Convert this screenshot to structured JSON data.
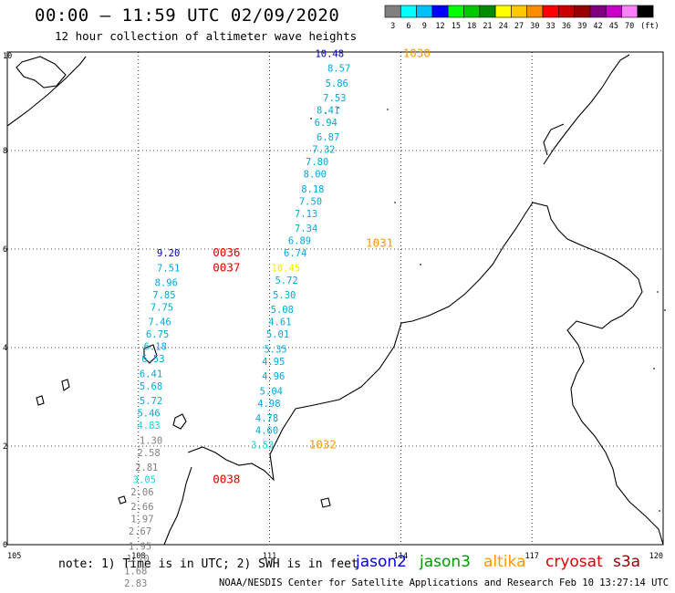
{
  "header": {
    "title": "00:00 – 11:59 UTC 02/09/2020",
    "subtitle": "12 hour collection of altimeter wave heights"
  },
  "legend": {
    "unit": "(ft)",
    "bins": [
      {
        "label": "3",
        "color": "#808080"
      },
      {
        "label": "6",
        "color": "#00ffff"
      },
      {
        "label": "9",
        "color": "#00bfff"
      },
      {
        "label": "12",
        "color": "#0000ff"
      },
      {
        "label": "15",
        "color": "#00ff00"
      },
      {
        "label": "18",
        "color": "#00c800"
      },
      {
        "label": "21",
        "color": "#008c00"
      },
      {
        "label": "24",
        "color": "#ffff00"
      },
      {
        "label": "27",
        "color": "#ffc800"
      },
      {
        "label": "30",
        "color": "#ff8c00"
      },
      {
        "label": "33",
        "color": "#ff0000"
      },
      {
        "label": "36",
        "color": "#c80000"
      },
      {
        "label": "39",
        "color": "#960000"
      },
      {
        "label": "42",
        "color": "#800080"
      },
      {
        "label": "45",
        "color": "#c800c8"
      },
      {
        "label": "70",
        "color": "#ff80ff"
      },
      {
        "label": "",
        "color": "#000000"
      }
    ]
  },
  "map": {
    "lon_range": [
      105,
      120
    ],
    "lat_range": [
      0,
      10
    ],
    "x_ticks": [
      "105",
      "108",
      "111",
      "114",
      "117",
      "120"
    ],
    "y_ticks": [
      "0",
      "2",
      "4",
      "6",
      "8",
      "10"
    ],
    "grid": true
  },
  "tracks": [
    {
      "points": [
        {
          "v": "10.48",
          "lon": 112.7,
          "lat": 9.9,
          "color": "#0000aa"
        },
        {
          "v": "8.57",
          "lon": 112.85,
          "lat": 9.6,
          "color": "#00aadd"
        },
        {
          "v": "5.86",
          "lon": 112.8,
          "lat": 9.3,
          "color": "#00aadd"
        },
        {
          "v": "7.53",
          "lon": 112.75,
          "lat": 9.0,
          "color": "#00aadd"
        },
        {
          "v": "8.41",
          "lon": 112.6,
          "lat": 8.75,
          "color": "#00aadd"
        },
        {
          "v": "6.94",
          "lon": 112.55,
          "lat": 8.5,
          "color": "#00aadd"
        },
        {
          "v": "6.87",
          "lon": 112.6,
          "lat": 8.2,
          "color": "#00aadd"
        },
        {
          "v": "7.32",
          "lon": 112.5,
          "lat": 7.95,
          "color": "#00aadd"
        },
        {
          "v": "7.80",
          "lon": 112.35,
          "lat": 7.7,
          "color": "#00aadd"
        },
        {
          "v": "8.00",
          "lon": 112.3,
          "lat": 7.45,
          "color": "#00aadd"
        },
        {
          "v": "8.18",
          "lon": 112.25,
          "lat": 7.15,
          "color": "#00aadd"
        },
        {
          "v": "7.50",
          "lon": 112.2,
          "lat": 6.9,
          "color": "#00aadd"
        },
        {
          "v": "7.13",
          "lon": 112.1,
          "lat": 6.65,
          "color": "#00aadd"
        },
        {
          "v": "7.34",
          "lon": 112.1,
          "lat": 6.35,
          "color": "#00aadd"
        },
        {
          "v": "6.89",
          "lon": 111.95,
          "lat": 6.1,
          "color": "#00aadd"
        },
        {
          "v": "6.74",
          "lon": 111.85,
          "lat": 5.85,
          "color": "#00aadd"
        },
        {
          "v": "10.45",
          "lon": 111.7,
          "lat": 5.55,
          "color": "#eeee00"
        },
        {
          "v": "5.72",
          "lon": 111.65,
          "lat": 5.3,
          "color": "#00aadd"
        },
        {
          "v": "5.30",
          "lon": 111.6,
          "lat": 5.0,
          "color": "#00aadd"
        },
        {
          "v": "5.08",
          "lon": 111.55,
          "lat": 4.7,
          "color": "#00aadd"
        },
        {
          "v": "4.61",
          "lon": 111.5,
          "lat": 4.45,
          "color": "#00aadd"
        },
        {
          "v": "5.01",
          "lon": 111.45,
          "lat": 4.2,
          "color": "#00aadd"
        },
        {
          "v": "5.35",
          "lon": 111.4,
          "lat": 3.9,
          "color": "#00aadd"
        },
        {
          "v": "4.95",
          "lon": 111.35,
          "lat": 3.65,
          "color": "#00aadd"
        },
        {
          "v": "4.96",
          "lon": 111.35,
          "lat": 3.35,
          "color": "#00aadd"
        },
        {
          "v": "5.04",
          "lon": 111.3,
          "lat": 3.05,
          "color": "#00aadd"
        },
        {
          "v": "4.98",
          "lon": 111.25,
          "lat": 2.8,
          "color": "#00aadd"
        },
        {
          "v": "4.78",
          "lon": 111.2,
          "lat": 2.5,
          "color": "#00aadd"
        },
        {
          "v": "4.60",
          "lon": 111.2,
          "lat": 2.25,
          "color": "#00aadd"
        },
        {
          "v": "3.53",
          "lon": 111.1,
          "lat": 1.95,
          "color": "#00dddd"
        }
      ]
    },
    {
      "points": [
        {
          "v": "9.20",
          "lon": 108.95,
          "lat": 5.85,
          "color": "#0000aa"
        },
        {
          "v": "7.51",
          "lon": 108.95,
          "lat": 5.55,
          "color": "#00aadd"
        },
        {
          "v": "8.96",
          "lon": 108.9,
          "lat": 5.25,
          "color": "#00aadd"
        },
        {
          "v": "7.85",
          "lon": 108.85,
          "lat": 5.0,
          "color": "#00aadd"
        },
        {
          "v": "7.75",
          "lon": 108.8,
          "lat": 4.75,
          "color": "#00aadd"
        },
        {
          "v": "7.46",
          "lon": 108.75,
          "lat": 4.45,
          "color": "#00aadd"
        },
        {
          "v": "6.75",
          "lon": 108.7,
          "lat": 4.2,
          "color": "#00aadd"
        },
        {
          "v": "6.18",
          "lon": 108.65,
          "lat": 3.95,
          "color": "#00aadd"
        },
        {
          "v": "6.53",
          "lon": 108.6,
          "lat": 3.7,
          "color": "#00aadd"
        },
        {
          "v": "6.41",
          "lon": 108.55,
          "lat": 3.4,
          "color": "#00aadd"
        },
        {
          "v": "5.68",
          "lon": 108.55,
          "lat": 3.15,
          "color": "#00aadd"
        },
        {
          "v": "5.72",
          "lon": 108.55,
          "lat": 2.85,
          "color": "#00aadd"
        },
        {
          "v": "5.46",
          "lon": 108.5,
          "lat": 2.6,
          "color": "#00aadd"
        },
        {
          "v": "4.83",
          "lon": 108.5,
          "lat": 2.35,
          "color": "#00dddd"
        },
        {
          "v": "1.30",
          "lon": 108.55,
          "lat": 2.05,
          "color": "#808080"
        },
        {
          "v": "2.58",
          "lon": 108.5,
          "lat": 1.8,
          "color": "#808080"
        },
        {
          "v": "2.81",
          "lon": 108.45,
          "lat": 1.5,
          "color": "#808080"
        },
        {
          "v": "3.05",
          "lon": 108.4,
          "lat": 1.25,
          "color": "#00dddd"
        },
        {
          "v": "2.06",
          "lon": 108.35,
          "lat": 1.0,
          "color": "#808080"
        },
        {
          "v": "2.66",
          "lon": 108.35,
          "lat": 0.7,
          "color": "#808080"
        },
        {
          "v": "1.97",
          "lon": 108.35,
          "lat": 0.45,
          "color": "#808080"
        },
        {
          "v": "2.67",
          "lon": 108.3,
          "lat": 0.2,
          "color": "#808080"
        },
        {
          "v": "1.95",
          "lon": 108.3,
          "lat": -0.1,
          "color": "#808080"
        },
        {
          "v": "1.70",
          "lon": 108.25,
          "lat": -0.35,
          "color": "#808080"
        },
        {
          "v": "1.68",
          "lon": 108.2,
          "lat": -0.6,
          "color": "#808080"
        },
        {
          "v": "2.83",
          "lon": 108.2,
          "lat": -0.85,
          "color": "#808080"
        }
      ]
    }
  ],
  "time_labels": [
    {
      "text": "1030",
      "lon": 114.05,
      "lat": 9.9,
      "color": "#ff9900"
    },
    {
      "text": "1031",
      "lon": 113.2,
      "lat": 6.05,
      "color": "#ff9900"
    },
    {
      "text": "1032",
      "lon": 111.9,
      "lat": 1.95,
      "color": "#ff9900"
    },
    {
      "text": "0036",
      "lon": 109.7,
      "lat": 5.85,
      "color": "#dd0000"
    },
    {
      "text": "0037",
      "lon": 109.7,
      "lat": 5.55,
      "color": "#dd0000"
    },
    {
      "text": "0038",
      "lon": 109.7,
      "lat": 1.25,
      "color": "#dd0000"
    }
  ],
  "footer": {
    "note": "note: 1) Time is in UTC; 2) SWH is in feet",
    "credit": "NOAA/NESDIS Center for Satellite Applications and Research   Feb 10 13:27:14 UTC 2020",
    "satellites": [
      {
        "name": "jason2",
        "color": "#0000dd"
      },
      {
        "name": "jason3",
        "color": "#009900"
      },
      {
        "name": "altika",
        "color": "#ff9900"
      },
      {
        "name": "cryosat",
        "color": "#dd0000"
      },
      {
        "name": "s3a",
        "color": "#990000"
      }
    ]
  }
}
